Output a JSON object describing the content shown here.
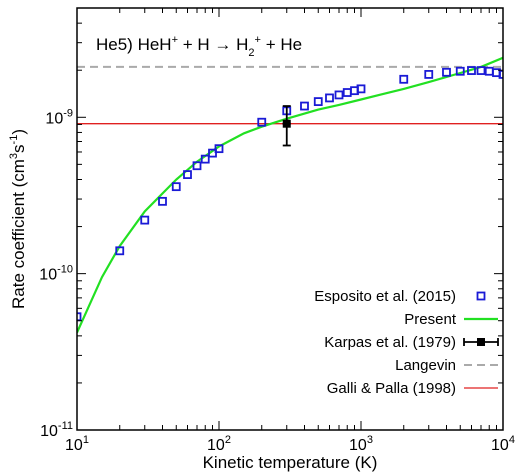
{
  "chart_data": {
    "type": "scatter",
    "title": {
      "prefix": "He5) HeH",
      "sup1": "+",
      "mid": " + H → H",
      "sub": "2",
      "sup2": "+",
      "suffix": " + He"
    },
    "xlabel": "Kinetic temperature (K)",
    "ylabel": {
      "prefix": "Rate coefficient (cm",
      "sup1": "3",
      "mid": "s",
      "sup2": "-1",
      "suffix": ")"
    },
    "x_scale": "log",
    "y_scale": "log",
    "xlim": [
      10,
      10000
    ],
    "ylim": [
      1e-11,
      5e-09
    ],
    "x_ticks": [
      {
        "value": 10,
        "base": "10",
        "exp": "1"
      },
      {
        "value": 100,
        "base": "10",
        "exp": "2"
      },
      {
        "value": 1000,
        "base": "10",
        "exp": "3"
      },
      {
        "value": 10000,
        "base": "10",
        "exp": "4"
      }
    ],
    "y_ticks": [
      {
        "value": 1e-11,
        "base": "10",
        "exp": "-11"
      },
      {
        "value": 1e-10,
        "base": "10",
        "exp": "-10"
      },
      {
        "value": 1e-09,
        "base": "10",
        "exp": "-9"
      }
    ],
    "grid": false,
    "legend_position": "bottom-right",
    "series": [
      {
        "name": "Esposito et al. (2015)",
        "kind": "markers",
        "color": "#1a1ad6",
        "x": [
          10,
          20,
          30,
          40,
          50,
          60,
          70,
          80,
          90,
          100,
          200,
          300,
          400,
          500,
          600,
          700,
          800,
          900,
          1000,
          2000,
          3000,
          4000,
          5000,
          6000,
          7000,
          8000,
          9000,
          10000
        ],
        "y": [
          5.3e-11,
          1.4e-10,
          2.2e-10,
          2.9e-10,
          3.6e-10,
          4.3e-10,
          4.9e-10,
          5.4e-10,
          5.9e-10,
          6.3e-10,
          9.3e-10,
          1.1e-09,
          1.18e-09,
          1.26e-09,
          1.33e-09,
          1.39e-09,
          1.44e-09,
          1.48e-09,
          1.52e-09,
          1.75e-09,
          1.88e-09,
          1.94e-09,
          1.97e-09,
          1.99e-09,
          1.99e-09,
          1.97e-09,
          1.93e-09,
          1.88e-09
        ]
      },
      {
        "name": "Present",
        "kind": "line",
        "color": "#22e022",
        "x": [
          10,
          15,
          20,
          30,
          50,
          70,
          100,
          150,
          200,
          300,
          500,
          700,
          1000,
          2000,
          3000,
          5000,
          7000,
          10000
        ],
        "y": [
          4.2e-11,
          9.5e-11,
          1.5e-10,
          2.5e-10,
          4e-10,
          5.2e-10,
          6.5e-10,
          7.9e-10,
          8.7e-10,
          9.8e-10,
          1.12e-09,
          1.2e-09,
          1.3e-09,
          1.52e-09,
          1.68e-09,
          1.92e-09,
          2.1e-09,
          2.4e-09
        ]
      },
      {
        "name": "Karpas et al. (1979)",
        "kind": "errorbar",
        "color": "#000000",
        "x": [
          300
        ],
        "y": [
          9.1e-10
        ],
        "x_err_low": [
          280
        ],
        "x_err_high": [
          320
        ],
        "y_err_low": [
          6.6e-10
        ],
        "y_err_high": [
          1.18e-09
        ]
      },
      {
        "name": "Langevin",
        "kind": "hline",
        "color": "#aaaaaa",
        "dashed": true,
        "y": 2.1e-09
      },
      {
        "name": "Galli & Palla (1998)",
        "kind": "hline",
        "color": "#e02020",
        "dashed": false,
        "y": 9.1e-10
      }
    ]
  }
}
